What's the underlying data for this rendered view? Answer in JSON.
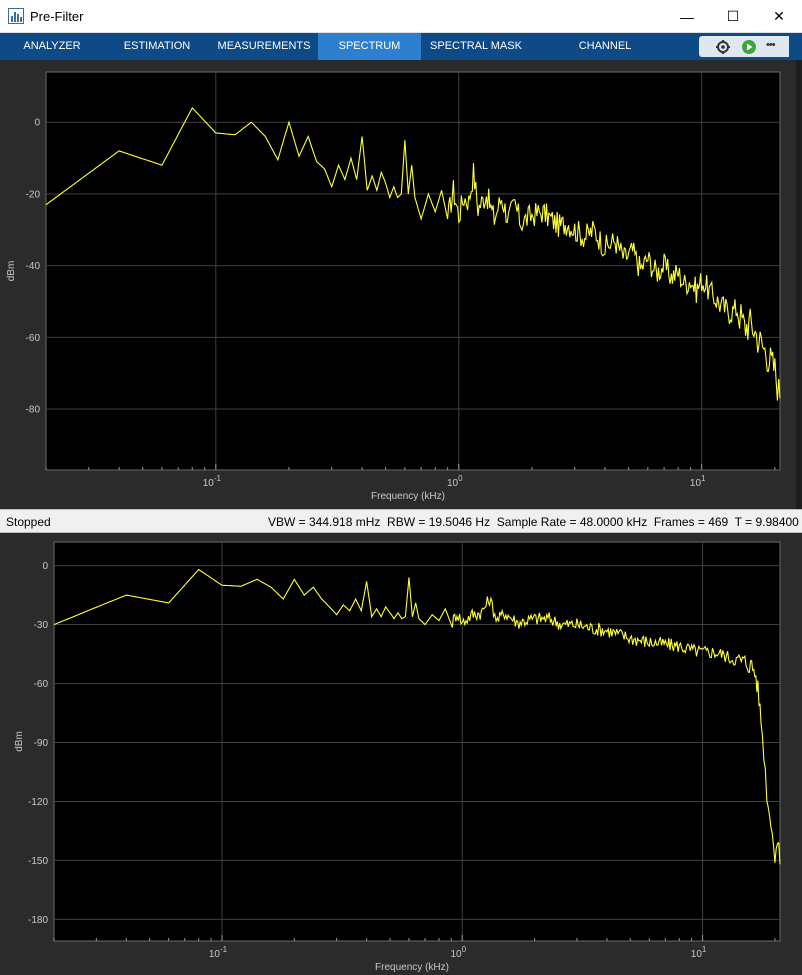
{
  "window": {
    "title": "Pre-Filter",
    "minimize_glyph": "—",
    "maximize_glyph": "☐",
    "close_glyph": "✕"
  },
  "toolstrip": {
    "tabs": [
      {
        "label": "ANALYZER"
      },
      {
        "label": "ESTIMATION"
      },
      {
        "label": "MEASUREMENTS"
      },
      {
        "label": "SPECTRUM"
      },
      {
        "label": "SPECTRAL MASK"
      },
      {
        "label": "CHANNEL MEASUREMENTS"
      }
    ],
    "active_tab": "SPECTRUM",
    "more_glyph": "•••",
    "icons": [
      "settings-icon",
      "run-icon",
      "more-icon"
    ]
  },
  "status": {
    "state": "Stopped",
    "readout": "VBW = 344.918 mHz  RBW = 19.5046 Hz  Sample Rate = 48.0000 kHz  Frames = 469  T = 9.98400"
  },
  "colors": {
    "trace": "#ffff33",
    "plot_bg": "#000000",
    "grid": "#404040",
    "toolstrip": "#0e4a86",
    "active_tab": "#2f7fd0"
  },
  "chart_data": [
    {
      "type": "line",
      "xlabel": "Frequency (kHz)",
      "ylabel": "dBm",
      "x_scale": "log",
      "xlim": [
        0.02,
        21
      ],
      "ylim": [
        -97,
        14
      ],
      "x_ticks": [
        {
          "base": "10",
          "exp": "-1",
          "value": 0.1
        },
        {
          "base": "10",
          "exp": "0",
          "value": 1
        },
        {
          "base": "10",
          "exp": "1",
          "value": 10
        }
      ],
      "y_ticks": [
        0,
        -20,
        -40,
        -60,
        -80
      ],
      "grid": true,
      "series": [
        {
          "x": [
            0.02,
            0.04,
            0.06,
            0.08,
            0.1,
            0.12,
            0.14,
            0.16,
            0.18,
            0.2,
            0.22,
            0.24,
            0.26,
            0.28,
            0.3,
            0.32,
            0.34,
            0.36,
            0.38,
            0.4,
            0.42,
            0.44,
            0.46,
            0.48,
            0.5,
            0.52,
            0.54,
            0.56,
            0.58,
            0.6,
            0.62,
            0.64,
            0.66,
            0.7,
            0.75,
            0.8,
            0.85,
            0.9,
            0.95,
            1.0,
            1.05,
            1.1,
            1.15,
            1.2,
            1.3,
            1.4,
            1.5,
            1.6,
            1.7,
            1.8,
            2.0,
            2.2,
            2.4,
            2.6,
            2.8,
            3.0,
            3.3,
            3.6,
            4.0,
            4.4,
            4.8,
            5.2,
            5.6,
            6.0,
            6.5,
            7.0,
            7.5,
            8.0,
            8.5,
            9.0,
            9.5,
            10.0,
            11.0,
            12.0,
            13.0,
            14.0,
            15.0,
            16.0,
            17.0,
            18.0,
            19.0,
            20.0,
            21.0
          ],
          "y": [
            -23,
            -8,
            -12,
            4,
            -3,
            -3.5,
            0,
            -4,
            -10.5,
            0,
            -9.5,
            -4,
            -11,
            -13,
            -18,
            -12,
            -16,
            -10,
            -16,
            -4,
            -19,
            -15,
            -19,
            -14,
            -17,
            -21,
            -18,
            -21,
            -20,
            -5,
            -20,
            -12,
            -21,
            -27,
            -20,
            -25,
            -19,
            -27,
            -19,
            -26,
            -21,
            -22,
            -14,
            -24,
            -20,
            -27,
            -21,
            -27,
            -23,
            -28,
            -26,
            -25,
            -27,
            -29,
            -28,
            -30,
            -32,
            -30,
            -35,
            -33,
            -38,
            -36,
            -41,
            -38,
            -42,
            -40,
            -43,
            -42,
            -45,
            -44,
            -47,
            -44,
            -48,
            -51,
            -53,
            -52,
            -57,
            -56,
            -60,
            -63,
            -66,
            -69,
            -77
          ]
        }
      ]
    },
    {
      "type": "line",
      "xlabel": "Frequency (kHz)",
      "ylabel": "dBm",
      "x_scale": "log",
      "xlim": [
        0.02,
        21
      ],
      "ylim": [
        -191,
        12
      ],
      "x_ticks": [
        {
          "base": "10",
          "exp": "-1",
          "value": 0.1
        },
        {
          "base": "10",
          "exp": "0",
          "value": 1
        },
        {
          "base": "10",
          "exp": "1",
          "value": 10
        }
      ],
      "y_ticks": [
        0,
        -30,
        -60,
        -90,
        -120,
        -150,
        -180
      ],
      "grid": true,
      "series": [
        {
          "x": [
            0.02,
            0.04,
            0.06,
            0.08,
            0.1,
            0.12,
            0.14,
            0.16,
            0.18,
            0.2,
            0.22,
            0.24,
            0.26,
            0.28,
            0.3,
            0.32,
            0.34,
            0.36,
            0.38,
            0.4,
            0.42,
            0.44,
            0.46,
            0.48,
            0.5,
            0.52,
            0.54,
            0.56,
            0.58,
            0.6,
            0.62,
            0.64,
            0.66,
            0.7,
            0.75,
            0.8,
            0.85,
            0.9,
            0.95,
            1.0,
            1.1,
            1.2,
            1.3,
            1.4,
            1.5,
            1.7,
            2.0,
            2.3,
            2.6,
            3.0,
            3.5,
            4.0,
            4.5,
            5.0,
            5.5,
            6.0,
            7.0,
            8.0,
            9.0,
            10.0,
            11.0,
            12.0,
            13.0,
            14.0,
            15.0,
            16.0,
            16.5,
            17.0,
            17.5,
            18.0,
            18.5,
            19.0,
            19.5,
            20.0,
            20.5,
            21.0
          ],
          "y": [
            -30,
            -15,
            -19,
            -2,
            -10,
            -10.5,
            -7,
            -11,
            -17,
            -7,
            -15,
            -11,
            -17,
            -21,
            -25,
            -20,
            -23,
            -17,
            -23,
            -8,
            -26,
            -22,
            -26,
            -21,
            -24,
            -27,
            -24,
            -27,
            -26,
            -6,
            -26,
            -19,
            -27,
            -30,
            -25,
            -28,
            -22,
            -30,
            -24,
            -29,
            -25,
            -24,
            -17,
            -28,
            -24,
            -29,
            -27,
            -27,
            -30,
            -30,
            -32,
            -33,
            -35,
            -37,
            -38,
            -39,
            -40,
            -41,
            -43,
            -44,
            -44,
            -45,
            -47,
            -48,
            -49,
            -51,
            -54,
            -63,
            -78,
            -95,
            -115,
            -128,
            -132,
            -150,
            -140,
            -152
          ]
        }
      ]
    }
  ]
}
